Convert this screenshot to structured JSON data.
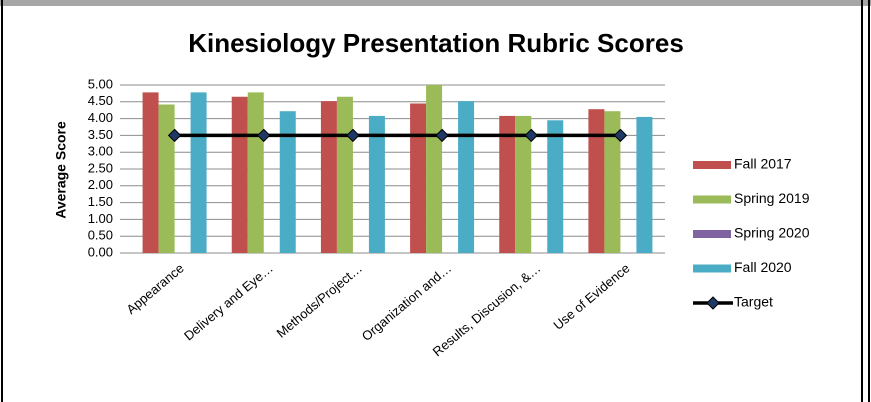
{
  "chart_data": {
    "type": "bar",
    "title": "Kinesiology Presentation Rubric Scores",
    "y_label": "Average Score",
    "categories": [
      "Appearance",
      "Delivery and Eye…",
      "Methods/Project…",
      "Organization and…",
      "Results, Discusion, &…",
      "Use of Evidence"
    ],
    "series": [
      {
        "name": "Fall 2017",
        "color": "#c0504d",
        "values": [
          4.78,
          4.65,
          4.52,
          4.45,
          4.08,
          4.28
        ]
      },
      {
        "name": "Spring 2019",
        "color": "#9bbb59",
        "values": [
          4.42,
          4.78,
          4.65,
          5.0,
          4.08,
          4.22
        ]
      },
      {
        "name": "Spring 2020",
        "color": "#8064a2",
        "values": [
          null,
          null,
          null,
          null,
          null,
          null
        ]
      },
      {
        "name": "Fall 2020",
        "color": "#4bacc6",
        "values": [
          4.78,
          4.22,
          4.08,
          4.52,
          3.95,
          4.05
        ]
      },
      {
        "name": "Target",
        "color": "#000000",
        "type": "line",
        "marker_color": "#1f3864",
        "values": [
          3.5,
          3.5,
          3.5,
          3.5,
          3.5,
          3.5
        ]
      }
    ],
    "ylim": [
      0,
      5
    ],
    "yticks": [
      {
        "value": 0,
        "label": "0.00"
      },
      {
        "value": 0.5,
        "label": "0.50"
      },
      {
        "value": 1,
        "label": "1.00"
      },
      {
        "value": 1.5,
        "label": "1.50"
      },
      {
        "value": 2,
        "label": "2.00"
      },
      {
        "value": 2.5,
        "label": "2.50"
      },
      {
        "value": 3,
        "label": "3.00"
      },
      {
        "value": 3.5,
        "label": "3.50"
      },
      {
        "value": 4,
        "label": "4.00"
      },
      {
        "value": 4.5,
        "label": "4.50"
      },
      {
        "value": 5,
        "label": "5.00"
      }
    ],
    "grid": true,
    "legend": "right"
  }
}
